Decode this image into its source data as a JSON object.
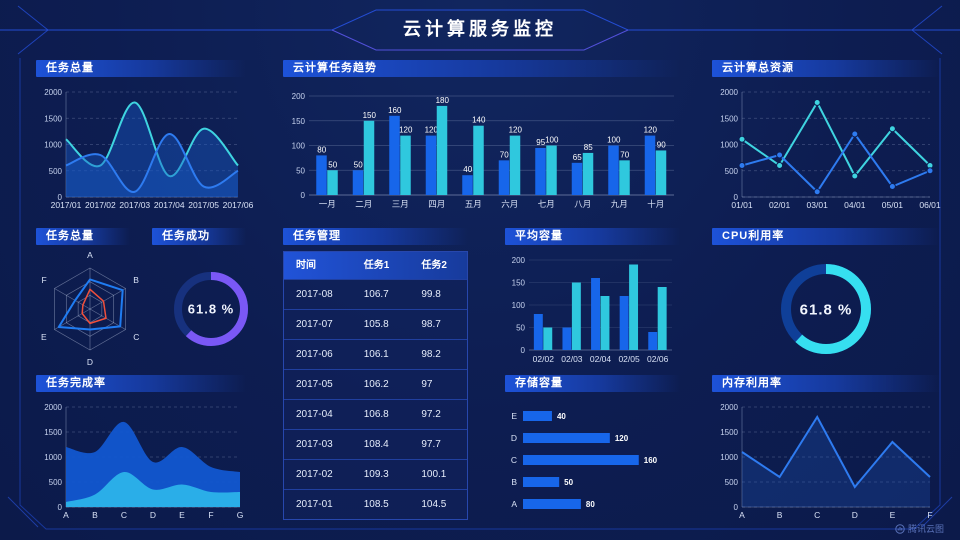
{
  "header": {
    "title": "云计算服务监控"
  },
  "watermark": {
    "label": "腾讯云图"
  },
  "colors": {
    "bg": "#0d1d51",
    "blue": "#1766ea",
    "cyan": "#2fc8de",
    "purple": "#7a58f5",
    "red": "#f0503c"
  },
  "panels": {
    "task_total_area": {
      "title": "任务总量"
    },
    "task_trend": {
      "title": "云计算任务趋势"
    },
    "cloud_resources": {
      "title": "云计算总资源"
    },
    "task_radar": {
      "title": "任务总量"
    },
    "task_success": {
      "title": "任务成功"
    },
    "task_table": {
      "title": "任务管理"
    },
    "avg_capacity": {
      "title": "平均容量"
    },
    "cpu_usage": {
      "title": "CPU利用率"
    },
    "task_completion": {
      "title": "任务完成率"
    },
    "storage": {
      "title": "存储容量"
    },
    "memory": {
      "title": "内存利用率"
    }
  },
  "chart_data": [
    {
      "id": "task_total_area",
      "type": "area",
      "title": "任务总量",
      "x": [
        "2017/01",
        "2017/02",
        "2017/03",
        "2017/04",
        "2017/05",
        "2017/06"
      ],
      "series": [
        {
          "name": "cyan",
          "color": "#3fd4e0",
          "smooth": true,
          "fill": "rgba(25,90,200,0.42)",
          "values": [
            1100,
            600,
            1800,
            400,
            1300,
            600
          ]
        },
        {
          "name": "blue",
          "color": "#2e7bf0",
          "smooth": true,
          "fill": "rgba(25,90,200,0.42)",
          "values": [
            600,
            800,
            100,
            1200,
            200,
            500
          ]
        }
      ],
      "ylim": [
        0,
        2000
      ],
      "yticks": [
        0,
        500,
        1000,
        1500,
        2000
      ],
      "grid": "dash"
    },
    {
      "id": "task_trend",
      "type": "bar",
      "title": "云计算任务趋势",
      "categories": [
        "一月",
        "二月",
        "三月",
        "四月",
        "五月",
        "六月",
        "七月",
        "八月",
        "九月",
        "十月"
      ],
      "series": [
        {
          "name": "blue",
          "color": "#1766ea",
          "values": [
            80,
            50,
            160,
            120,
            40,
            70,
            95,
            65,
            100,
            120
          ]
        },
        {
          "name": "cyan",
          "color": "#2fc8de",
          "values": [
            50,
            150,
            120,
            180,
            140,
            120,
            100,
            85,
            70,
            90
          ]
        }
      ],
      "ylim": [
        0,
        200
      ],
      "yticks": [
        0,
        50,
        100,
        150,
        200
      ],
      "value_labels": true,
      "grid": "solid"
    },
    {
      "id": "cloud_resources",
      "type": "line",
      "title": "云计算总资源",
      "x": [
        "01/01",
        "02/01",
        "03/01",
        "04/01",
        "05/01",
        "06/01"
      ],
      "series": [
        {
          "name": "cyan",
          "color": "#3fd4e0",
          "marker": true,
          "values": [
            1100,
            600,
            1800,
            400,
            1300,
            600
          ]
        },
        {
          "name": "blue",
          "color": "#2e7bf0",
          "marker": true,
          "values": [
            600,
            800,
            100,
            1200,
            200,
            500
          ]
        }
      ],
      "ylim": [
        0,
        2000
      ],
      "yticks": [
        0,
        500,
        1000,
        1500,
        2000
      ],
      "grid": "dash"
    },
    {
      "id": "task_radar",
      "type": "radar",
      "title": "任务总量",
      "indicators": [
        "A",
        "B",
        "C",
        "D",
        "E",
        "F"
      ],
      "max": 100,
      "levels": 3,
      "series": [
        {
          "name": "blue",
          "color": "#1f7cf2",
          "width": 2,
          "values": [
            72,
            92,
            85,
            50,
            88,
            42
          ]
        },
        {
          "name": "red",
          "color": "#f0503c",
          "width": 1.5,
          "values": [
            48,
            38,
            45,
            35,
            22,
            20
          ]
        }
      ]
    },
    {
      "id": "task_success",
      "type": "donut",
      "title": "任务成功",
      "percent": 61.8,
      "label": "61.8 %",
      "color": "#7a58f5",
      "track": "#17317e"
    },
    {
      "id": "task_table",
      "type": "table",
      "title": "任务管理",
      "columns": [
        "时间",
        "任务1",
        "任务2"
      ],
      "rows": [
        [
          "2017-08",
          "106.7",
          "99.8"
        ],
        [
          "2017-07",
          "105.8",
          "98.7"
        ],
        [
          "2017-06",
          "106.1",
          "98.2"
        ],
        [
          "2017-05",
          "106.2",
          "97"
        ],
        [
          "2017-04",
          "106.8",
          "97.2"
        ],
        [
          "2017-03",
          "108.4",
          "97.7"
        ],
        [
          "2017-02",
          "109.3",
          "100.1"
        ],
        [
          "2017-01",
          "108.5",
          "104.5"
        ]
      ]
    },
    {
      "id": "avg_capacity",
      "type": "bar",
      "title": "平均容量",
      "categories": [
        "02/02",
        "02/03",
        "02/04",
        "02/05",
        "02/06"
      ],
      "series": [
        {
          "name": "blue",
          "color": "#1766ea",
          "values": [
            80,
            50,
            160,
            120,
            40
          ]
        },
        {
          "name": "cyan",
          "color": "#2fc8de",
          "values": [
            50,
            150,
            120,
            190,
            140
          ]
        }
      ],
      "ylim": [
        0,
        200
      ],
      "yticks": [
        0,
        50,
        100,
        150,
        200
      ],
      "value_labels": false,
      "grid": "faint"
    },
    {
      "id": "cpu_usage",
      "type": "donut",
      "title": "CPU利用率",
      "percent": 61.8,
      "label": "61.8 %",
      "color": "#36dff0",
      "track": "#0f3f98"
    },
    {
      "id": "task_completion",
      "type": "area",
      "title": "任务完成率",
      "x": [
        "A",
        "B",
        "C",
        "D",
        "E",
        "F",
        "G"
      ],
      "series": [
        {
          "name": "blue-outer",
          "color": "none",
          "smooth": true,
          "fill": "rgba(18,87,208,0.95)",
          "values": [
            1200,
            1100,
            1700,
            900,
            1200,
            800,
            700
          ]
        },
        {
          "name": "cyan-inner",
          "color": "none",
          "smooth": true,
          "fill": "rgba(42,174,232,1)",
          "values": [
            100,
            250,
            700,
            350,
            450,
            300,
            300
          ]
        }
      ],
      "ylim": [
        0,
        2000
      ],
      "yticks": [
        0,
        500,
        1000,
        1500,
        2000
      ],
      "grid": "dash"
    },
    {
      "id": "storage",
      "type": "hbar",
      "title": "存储容量",
      "categories": [
        "E",
        "D",
        "C",
        "B",
        "A"
      ],
      "values": [
        40,
        120,
        160,
        50,
        80
      ],
      "xmax": 170,
      "color": "#1766ea"
    },
    {
      "id": "memory",
      "type": "line",
      "title": "内存利用率",
      "x": [
        "A",
        "B",
        "C",
        "D",
        "E",
        "F"
      ],
      "series": [
        {
          "name": "blue",
          "color": "#2e7bf0",
          "fill": "rgba(30,90,200,0.25)",
          "values": [
            1100,
            600,
            1800,
            400,
            1300,
            600
          ]
        }
      ],
      "ylim": [
        0,
        2000
      ],
      "yticks": [
        0,
        500,
        1000,
        1500,
        2000
      ],
      "grid": "dash"
    }
  ]
}
